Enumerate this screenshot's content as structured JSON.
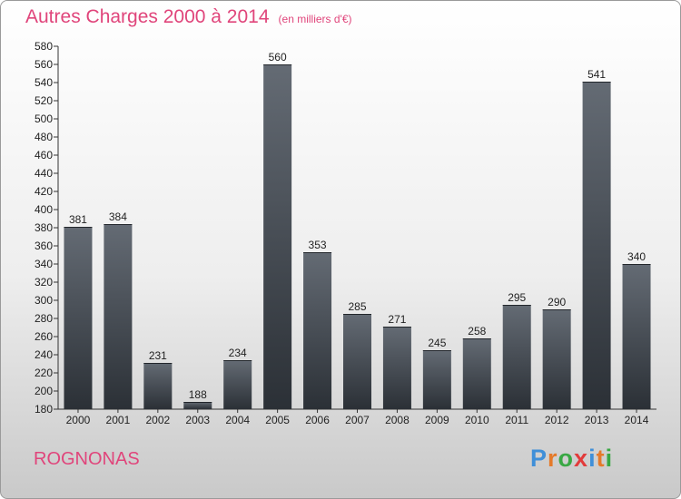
{
  "header": {
    "title": "Autres Charges 2000 à 2014",
    "subtitle": "(en milliers d'€)"
  },
  "location": "ROGNONAS",
  "logo": {
    "text": "Proxiti"
  },
  "chart_data": {
    "type": "bar",
    "title": "Autres Charges 2000 à 2014",
    "subtitle": "(en milliers d'€)",
    "categories": [
      "2000",
      "2001",
      "2002",
      "2003",
      "2004",
      "2005",
      "2006",
      "2007",
      "2008",
      "2009",
      "2010",
      "2011",
      "2012",
      "2013",
      "2014"
    ],
    "values": [
      381,
      384,
      231,
      188,
      234,
      560,
      353,
      285,
      271,
      245,
      258,
      295,
      290,
      541,
      340
    ],
    "xlabel": "",
    "ylabel": "",
    "ylim": [
      180,
      580
    ],
    "yticks": [
      180,
      200,
      220,
      240,
      260,
      280,
      300,
      320,
      340,
      360,
      380,
      400,
      420,
      440,
      460,
      480,
      500,
      520,
      540,
      560,
      580
    ],
    "grid": false,
    "legend": "none",
    "bar_color": "#4a5058"
  }
}
